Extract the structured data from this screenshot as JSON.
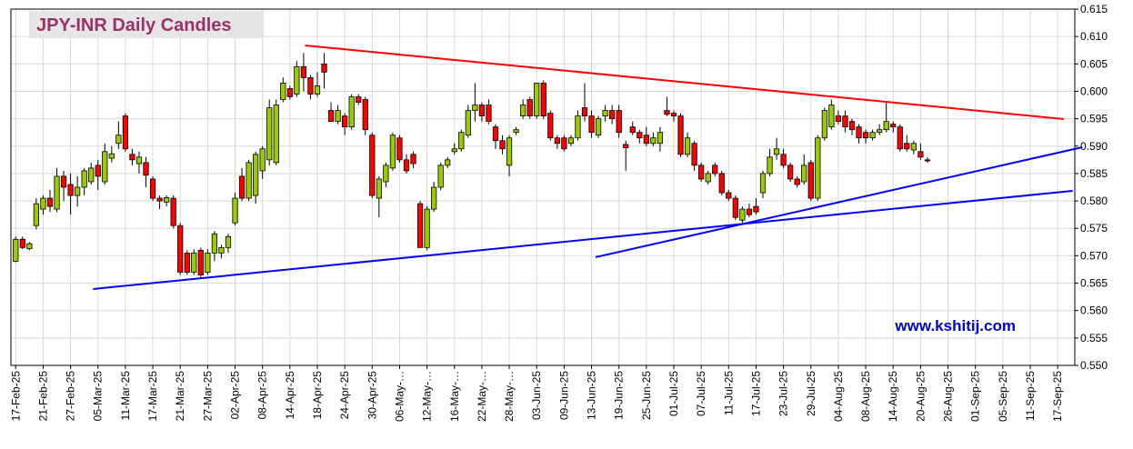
{
  "chart_data": {
    "type": "candlestick",
    "title": "JPY-INR Daily Candles",
    "watermark": "www.kshitij.com",
    "up_color": "#99cc00",
    "down_color": "#ff0000",
    "grid": true,
    "x": [
      0,
      1,
      2,
      3,
      4,
      5,
      6,
      7,
      8,
      9,
      10,
      11,
      12,
      13,
      14,
      15,
      16,
      17,
      18,
      19,
      20,
      21,
      22,
      23,
      24,
      25,
      26,
      27,
      28,
      29,
      30,
      31,
      32,
      33,
      34,
      35,
      36,
      37,
      38,
      39,
      40,
      41,
      42,
      43,
      44,
      45,
      46,
      47,
      48,
      49,
      50,
      51,
      52,
      53,
      54,
      55,
      56,
      57,
      58,
      59,
      60,
      61,
      62,
      63,
      64,
      65,
      66,
      67,
      68,
      69,
      70,
      71,
      72,
      73,
      74,
      75,
      76,
      77,
      78,
      79,
      80,
      81,
      82,
      83,
      84,
      85,
      86,
      87,
      88,
      89,
      90,
      91,
      92,
      93,
      94,
      95,
      96,
      97,
      98,
      99,
      100,
      101,
      102,
      103,
      104,
      105,
      106,
      107,
      108,
      109,
      110,
      111,
      112,
      113,
      114,
      115,
      116,
      117,
      118,
      119,
      120,
      121,
      122,
      123,
      124,
      125,
      126,
      127,
      128,
      129,
      130,
      131,
      132,
      133
    ],
    "open": [
      0.569,
      0.573,
      0.5713,
      0.5755,
      0.5785,
      0.5805,
      0.5785,
      0.5845,
      0.583,
      0.581,
      0.5825,
      0.5835,
      0.5865,
      0.5835,
      0.5878,
      0.5905,
      0.5955,
      0.5885,
      0.5868,
      0.587,
      0.584,
      0.5805,
      0.5798,
      0.5805,
      0.5755,
      0.5705,
      0.567,
      0.571,
      0.567,
      0.5705,
      0.5705,
      0.5715,
      0.576,
      0.5845,
      0.5805,
      0.581,
      0.5855,
      0.5875,
      0.587,
      0.5985,
      0.6005,
      0.5995,
      0.6045,
      0.6025,
      0.5995,
      0.605,
      0.5965,
      0.5945,
      0.5955,
      0.5935,
      0.599,
      0.5985,
      0.592,
      0.5805,
      0.5835,
      0.586,
      0.5915,
      0.5875,
      0.5885,
      0.5795,
      0.5715,
      0.5785,
      0.5825,
      0.5865,
      0.589,
      0.5895,
      0.592,
      0.5965,
      0.5975,
      0.5975,
      0.5935,
      0.591,
      0.5865,
      0.5925,
      0.5955,
      0.5985,
      0.5955,
      0.6015,
      0.596,
      0.5915,
      0.5915,
      0.5905,
      0.5915,
      0.597,
      0.5955,
      0.592,
      0.5955,
      0.5965,
      0.5965,
      0.5903,
      0.5935,
      0.5925,
      0.592,
      0.5905,
      0.5905,
      0.5965,
      0.596,
      0.5955,
      0.5885,
      0.5905,
      0.5865,
      0.5835,
      0.5865,
      0.585,
      0.5815,
      0.5805,
      0.5765,
      0.5785,
      0.579,
      0.5815,
      0.585,
      0.5885,
      0.5885,
      0.5865,
      0.584,
      0.5835,
      0.587,
      0.5805,
      0.5915,
      0.5935,
      0.5955,
      0.5955,
      0.5945,
      0.5935,
      0.5925,
      0.5915,
      0.5925,
      0.593,
      0.594,
      0.5935,
      0.5905,
      0.5893,
      0.589,
      0.5875
    ],
    "high": [
      0.5735,
      0.5735,
      0.5725,
      0.5805,
      0.581,
      0.582,
      0.586,
      0.5855,
      0.585,
      0.5845,
      0.586,
      0.587,
      0.5875,
      0.5905,
      0.59,
      0.5945,
      0.596,
      0.5895,
      0.589,
      0.588,
      0.5845,
      0.581,
      0.581,
      0.581,
      0.576,
      0.571,
      0.5712,
      0.5715,
      0.5712,
      0.5745,
      0.572,
      0.574,
      0.5815,
      0.586,
      0.5875,
      0.589,
      0.59,
      0.5985,
      0.5985,
      0.6025,
      0.601,
      0.6055,
      0.607,
      0.603,
      0.6035,
      0.607,
      0.598,
      0.5975,
      0.596,
      0.5995,
      0.5995,
      0.599,
      0.5925,
      0.5845,
      0.587,
      0.5925,
      0.592,
      0.5885,
      0.589,
      0.58,
      0.579,
      0.5835,
      0.587,
      0.588,
      0.5905,
      0.593,
      0.5975,
      0.6015,
      0.598,
      0.5985,
      0.594,
      0.592,
      0.592,
      0.5935,
      0.5985,
      0.599,
      0.6015,
      0.602,
      0.5965,
      0.592,
      0.592,
      0.592,
      0.5965,
      0.6015,
      0.5965,
      0.5955,
      0.5975,
      0.5975,
      0.5975,
      0.591,
      0.5945,
      0.593,
      0.5935,
      0.5925,
      0.5935,
      0.599,
      0.5965,
      0.596,
      0.5925,
      0.591,
      0.587,
      0.5855,
      0.587,
      0.5855,
      0.582,
      0.581,
      0.579,
      0.5795,
      0.5805,
      0.5855,
      0.5895,
      0.5915,
      0.5895,
      0.587,
      0.5845,
      0.5885,
      0.5875,
      0.592,
      0.597,
      0.5985,
      0.5965,
      0.5965,
      0.595,
      0.594,
      0.593,
      0.593,
      0.594,
      0.598,
      0.5945,
      0.594,
      0.592,
      0.591,
      0.5905,
      0.588
    ],
    "low": [
      0.5688,
      0.5712,
      0.571,
      0.5748,
      0.5775,
      0.578,
      0.578,
      0.58,
      0.5775,
      0.579,
      0.581,
      0.583,
      0.582,
      0.583,
      0.587,
      0.5895,
      0.589,
      0.5865,
      0.585,
      0.5825,
      0.58,
      0.5785,
      0.579,
      0.575,
      0.5665,
      0.5665,
      0.5665,
      0.566,
      0.5665,
      0.569,
      0.5695,
      0.5705,
      0.5755,
      0.58,
      0.58,
      0.5795,
      0.584,
      0.5865,
      0.5865,
      0.598,
      0.5985,
      0.599,
      0.6,
      0.5985,
      0.599,
      0.6005,
      0.5945,
      0.594,
      0.592,
      0.593,
      0.5975,
      0.592,
      0.5805,
      0.577,
      0.5825,
      0.5855,
      0.587,
      0.585,
      0.586,
      0.5715,
      0.571,
      0.578,
      0.582,
      0.586,
      0.5885,
      0.589,
      0.5915,
      0.5945,
      0.5945,
      0.594,
      0.5895,
      0.5885,
      0.5845,
      0.592,
      0.595,
      0.595,
      0.595,
      0.595,
      0.591,
      0.5895,
      0.589,
      0.59,
      0.591,
      0.5945,
      0.5915,
      0.5915,
      0.5945,
      0.594,
      0.5915,
      0.5855,
      0.592,
      0.5905,
      0.59,
      0.59,
      0.589,
      0.5955,
      0.5945,
      0.588,
      0.588,
      0.5855,
      0.5835,
      0.583,
      0.5845,
      0.581,
      0.58,
      0.5765,
      0.576,
      0.577,
      0.5775,
      0.5805,
      0.5845,
      0.5875,
      0.586,
      0.5835,
      0.5825,
      0.583,
      0.58,
      0.58,
      0.591,
      0.593,
      0.594,
      0.5925,
      0.592,
      0.5905,
      0.5905,
      0.591,
      0.592,
      0.5925,
      0.5925,
      0.589,
      0.589,
      0.5885,
      0.5875,
      0.587
    ],
    "close": [
      0.573,
      0.5715,
      0.5722,
      0.5795,
      0.5805,
      0.579,
      0.5845,
      0.5825,
      0.581,
      0.5825,
      0.5855,
      0.586,
      0.5845,
      0.589,
      0.5886,
      0.592,
      0.5895,
      0.5875,
      0.588,
      0.5847,
      0.5805,
      0.58,
      0.5806,
      0.5755,
      0.567,
      0.567,
      0.5705,
      0.5665,
      0.5705,
      0.574,
      0.5715,
      0.5735,
      0.5805,
      0.5805,
      0.587,
      0.5885,
      0.5895,
      0.597,
      0.5975,
      0.6015,
      0.599,
      0.6045,
      0.6025,
      0.5995,
      0.601,
      0.6035,
      0.5945,
      0.5965,
      0.5935,
      0.599,
      0.598,
      0.593,
      0.581,
      0.584,
      0.5865,
      0.592,
      0.5875,
      0.5855,
      0.5868,
      0.5715,
      0.5785,
      0.5825,
      0.5865,
      0.5875,
      0.5895,
      0.5925,
      0.5965,
      0.5975,
      0.5955,
      0.5945,
      0.591,
      0.5895,
      0.5915,
      0.593,
      0.5975,
      0.5955,
      0.6015,
      0.5955,
      0.5915,
      0.5905,
      0.5895,
      0.5915,
      0.5955,
      0.5955,
      0.5925,
      0.595,
      0.5965,
      0.595,
      0.5925,
      0.5897,
      0.5925,
      0.5915,
      0.5905,
      0.5915,
      0.5925,
      0.5958,
      0.5955,
      0.5885,
      0.5915,
      0.5865,
      0.584,
      0.585,
      0.585,
      0.5815,
      0.5805,
      0.577,
      0.5785,
      0.5775,
      0.578,
      0.585,
      0.588,
      0.5895,
      0.5865,
      0.584,
      0.583,
      0.5865,
      0.5805,
      0.5915,
      0.5965,
      0.5975,
      0.5945,
      0.5935,
      0.593,
      0.5915,
      0.5915,
      0.5925,
      0.593,
      0.5945,
      0.5935,
      0.5895,
      0.5895,
      0.5905,
      0.588,
      0.5873
    ],
    "lines": [
      {
        "color": "#ff0000",
        "x": [
          42.2,
          152.9
        ],
        "y": [
          0.60837,
          0.59494
        ]
      },
      {
        "color": "#0000ff",
        "x": [
          11.3,
          154.2
        ],
        "y": [
          0.56393,
          0.58184
        ]
      },
      {
        "color": "#0000ff",
        "x": [
          84.6,
          155.6
        ],
        "y": [
          0.56974,
          0.5898
        ]
      }
    ],
    "xlim": [
      -0.7,
      154.5
    ],
    "xticks": [
      {
        "value": 0,
        "label": "17-Feb-25"
      },
      {
        "value": 4,
        "label": "21-Feb-25"
      },
      {
        "value": 8,
        "label": "27-Feb-25"
      },
      {
        "value": 12,
        "label": "05-Mar-25"
      },
      {
        "value": 16,
        "label": "11-Mar-25"
      },
      {
        "value": 20,
        "label": "17-Mar-25"
      },
      {
        "value": 24,
        "label": "21-Mar-25"
      },
      {
        "value": 28,
        "label": "27-Mar-25"
      },
      {
        "value": 32,
        "label": "02-Apr-25"
      },
      {
        "value": 36,
        "label": "08-Apr-25"
      },
      {
        "value": 40,
        "label": "14-Apr-25"
      },
      {
        "value": 44,
        "label": "18-Apr-25"
      },
      {
        "value": 48,
        "label": "24-Apr-25"
      },
      {
        "value": 52,
        "label": "30-Apr-25"
      },
      {
        "value": 56,
        "label": "06-May-…"
      },
      {
        "value": 60,
        "label": "12-May-…"
      },
      {
        "value": 64,
        "label": "16-May-…"
      },
      {
        "value": 68,
        "label": "22-May-…"
      },
      {
        "value": 72,
        "label": "28-May-…"
      },
      {
        "value": 76,
        "label": "03-Jun-25"
      },
      {
        "value": 80,
        "label": "09-Jun-25"
      },
      {
        "value": 84,
        "label": "13-Jun-25"
      },
      {
        "value": 88,
        "label": "19-Jun-25"
      },
      {
        "value": 92,
        "label": "25-Jun-25"
      },
      {
        "value": 96,
        "label": "01-Jul-25"
      },
      {
        "value": 100,
        "label": "07-Jul-25"
      },
      {
        "value": 104,
        "label": "11-Jul-25"
      },
      {
        "value": 108,
        "label": "17-Jul-25"
      },
      {
        "value": 112,
        "label": "23-Jul-25"
      },
      {
        "value": 116,
        "label": "29-Jul-25"
      },
      {
        "value": 120,
        "label": "04-Aug-25"
      },
      {
        "value": 124,
        "label": "08-Aug-25"
      },
      {
        "value": 128,
        "label": "14-Aug-25"
      },
      {
        "value": 132,
        "label": "20-Aug-25"
      },
      {
        "value": 136,
        "label": "26-Aug-25"
      },
      {
        "value": 140,
        "label": "01-Sep-25"
      },
      {
        "value": 144,
        "label": "05-Sep-25"
      },
      {
        "value": 148,
        "label": "11-Sep-25"
      },
      {
        "value": 152,
        "label": "17-Sep-25"
      }
    ],
    "ylim": [
      0.55,
      0.615
    ],
    "yticks": [
      {
        "value": 0.55,
        "label": "0.550"
      },
      0.555,
      {
        "value": 0.56,
        "label": "0.560"
      },
      0.565,
      {
        "value": 0.57,
        "label": "0.570"
      },
      0.575,
      {
        "value": 0.58,
        "label": "0.580"
      },
      0.585,
      {
        "value": 0.59,
        "label": "0.590"
      },
      0.595,
      {
        "value": 0.6,
        "label": "0.600"
      },
      0.605,
      {
        "value": 0.61,
        "label": "0.610"
      },
      0.615
    ]
  }
}
